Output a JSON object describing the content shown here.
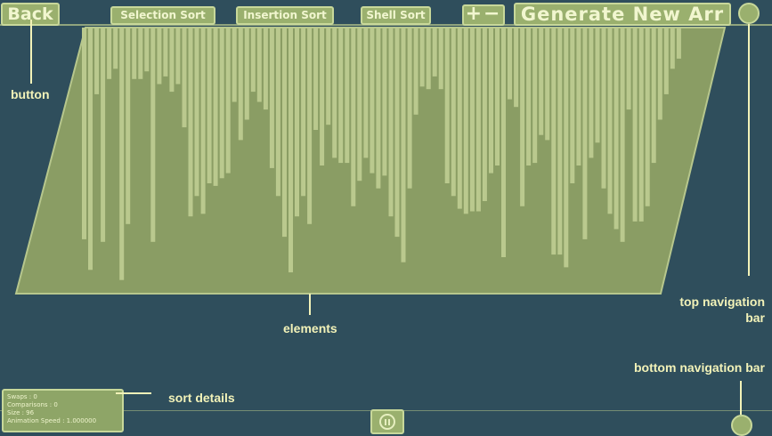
{
  "toolbar": {
    "back_label": "Back",
    "selection_sort_label": "Selection Sort",
    "insertion_sort_label": "Insertion Sort",
    "shell_sort_label": "Shell Sort",
    "plus_minus_label": "+−",
    "generate_label": "Generate New Arr"
  },
  "details": {
    "swaps": "Swaps : 0",
    "comparisons": "Comparisons : 0",
    "size": "Size : 96",
    "animation_speed": "Animation Speed : 1.000000"
  },
  "annotations": {
    "button": "button",
    "elements": "elements",
    "top_nav_line1": "top navigation",
    "top_nav_line2": "bar",
    "bottom_nav": "bottom navigation bar",
    "sort_details": "sort details"
  },
  "colors": {
    "background": "#2f4e5c",
    "panel": "#8a9d64",
    "bar": "#bac98e",
    "button": "#9ab06e",
    "annotation": "#f2f2b8"
  },
  "array": {
    "size": 96,
    "values": [
      0.79,
      0.91,
      0.22,
      0.8,
      0.16,
      0.12,
      0.95,
      0.73,
      0.16,
      0.16,
      0.13,
      0.8,
      0.18,
      0.15,
      0.21,
      0.18,
      0.35,
      0.7,
      0.62,
      0.69,
      0.57,
      0.58,
      0.55,
      0.53,
      0.25,
      0.4,
      0.32,
      0.21,
      0.25,
      0.28,
      0.51,
      0.62,
      0.78,
      0.92,
      0.7,
      0.62,
      0.73,
      0.36,
      0.5,
      0.34,
      0.47,
      0.49,
      0.49,
      0.66,
      0.56,
      0.47,
      0.53,
      0.59,
      0.54,
      0.7,
      0.78,
      0.88,
      0.59,
      0.3,
      0.19,
      0.2,
      0.15,
      0.2,
      0.57,
      0.62,
      0.67,
      0.69,
      0.68,
      0.68,
      0.64,
      0.53,
      0.5,
      0.86,
      0.24,
      0.27,
      0.66,
      0.5,
      0.49,
      0.38,
      0.4,
      0.85,
      0.85,
      0.9,
      0.57,
      0.5,
      0.79,
      0.47,
      0.41,
      0.59,
      0.69,
      0.75,
      0.8,
      0.28,
      0.72,
      0.72,
      0.66,
      0.49,
      0.32,
      0.22,
      0.12,
      0.08
    ]
  }
}
